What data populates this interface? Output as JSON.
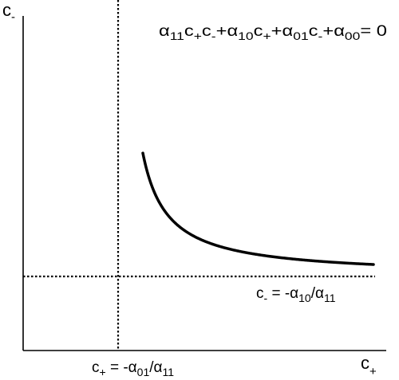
{
  "axes": {
    "x_label_main": "c",
    "x_label_sub": "+",
    "y_label_main": "c",
    "y_label_sub": "-"
  },
  "curve_equation": {
    "a1": "α",
    "a1_sub": "11",
    "t1": "c",
    "t1_sub": "+",
    "t2": "c",
    "t2_sub": "-",
    "plus1": "+",
    "a2": "α",
    "a2_sub": "10",
    "t3": "c",
    "t3_sub": "+",
    "plus2": "+",
    "a3": "α",
    "a3_sub": "01",
    "t4": "c",
    "t4_sub": "-",
    "plus3": "+",
    "a4": "α",
    "a4_sub": "00",
    "rhs": "= 0"
  },
  "horizontal_asymptote": {
    "var": "c",
    "var_sub": "-",
    "eq": " = -",
    "num": "α",
    "num_sub": "10",
    "slash": "/",
    "den": "α",
    "den_sub": "11"
  },
  "vertical_asymptote": {
    "var": "c",
    "var_sub": "+",
    "eq": " = -",
    "num": "α",
    "num_sub": "01",
    "slash": "/",
    "den": "α",
    "den_sub": "11"
  },
  "colors": {
    "ink": "#000000",
    "background": "#ffffff"
  }
}
